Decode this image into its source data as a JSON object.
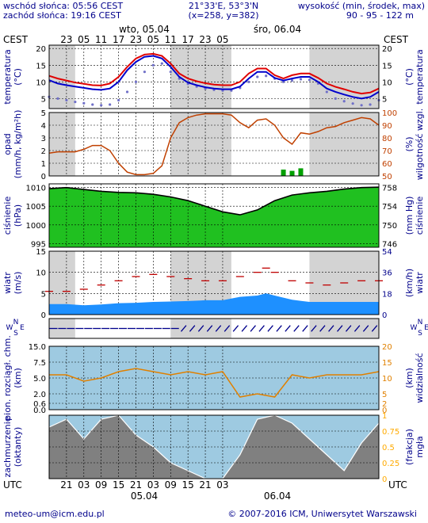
{
  "header": {
    "sunrise": "wschód słońca: 05:56 CEST",
    "sunset": "zachód słońca: 19:16 CEST",
    "coords": "21°33'E, 53°3'N",
    "grid": "(x=258, y=382)",
    "elevation_label": "wysokość (min, środek, max)",
    "elevation_values": "90 - 95 - 122 m"
  },
  "top_axis": {
    "tz_left": "CEST",
    "tz_right": "CEST",
    "day1": "wto, 05.04",
    "day2": "śro, 06.04",
    "ticks": [
      "23",
      "05",
      "11",
      "17",
      "23",
      "05",
      "11",
      "17",
      "23",
      "05"
    ]
  },
  "bottom_axis": {
    "tz_left": "UTC",
    "tz_right": "UTC",
    "ticks": [
      "21",
      "03",
      "09",
      "15",
      "21",
      "03",
      "09",
      "15",
      "21",
      "03"
    ],
    "date1": "05.04",
    "date2": "06.04"
  },
  "panels": {
    "temperature": {
      "label_left_1": "temperatura",
      "label_left_2": "(°C)",
      "label_right_1": "(°C)",
      "label_right_2": "temperatura",
      "ticks": [
        "20",
        "15",
        "10",
        "5"
      ]
    },
    "precip": {
      "label_left_1": "opad",
      "label_left_2": "(mm/h, kg/m²h)",
      "label_right_1": "(%)",
      "label_right_2": "wilgotność wzgl.",
      "ticks_left": [
        "5",
        "4",
        "3",
        "2",
        "1",
        "0"
      ],
      "ticks_right": [
        "100",
        "90",
        "80",
        "70",
        "60",
        "50"
      ]
    },
    "pressure": {
      "label_left_1": "ciśnienie",
      "label_left_2": "(hPa)",
      "label_right_1": "(mm Hg)",
      "label_right_2": "ciśnienie",
      "ticks_left": [
        "1010",
        "1005",
        "1000",
        "995"
      ],
      "ticks_right": [
        "758",
        "754",
        "750",
        "746"
      ]
    },
    "wind": {
      "label_left_1": "wiatr",
      "label_left_2": "(m/s)",
      "label_right_1": "(km/h)",
      "label_right_2": "wiatr",
      "ticks_left": [
        "15",
        "10",
        "5",
        "0"
      ],
      "ticks_right": [
        "54",
        "36",
        "18",
        "0"
      ]
    },
    "wind_dir": {
      "compass_n": "N",
      "compass_w": "W",
      "compass_e": "E",
      "compass_s": "S"
    },
    "visibility": {
      "label_left_1": "pion. rozciągł. chm.",
      "label_left_2": "(km)",
      "label_right_1": "(km)",
      "label_right_2": "widzialność",
      "ticks_left": [
        "15.0",
        "7.5",
        "5.0",
        "2.0",
        "0.6",
        "0.0"
      ],
      "ticks_right": [
        "20",
        "15",
        "10",
        "5",
        "2",
        "0"
      ]
    },
    "clouds": {
      "label_left_1": "zachmurzenie",
      "label_left_2": "(oktanty)",
      "label_right_1": "(frakcja)",
      "label_right_2": "mgła",
      "ticks_right": [
        "1",
        "0.75",
        "0.5",
        "0.25",
        "0"
      ]
    }
  },
  "footer": {
    "email": "meteo-um@icm.edu.pl",
    "copyright": "© 2007-2016 ICM, Uniwersytet Warszawski"
  },
  "colors": {
    "panel_bg": "#ffffff",
    "night_band": "#d3d3d3",
    "temp_red": "#e00000",
    "temp_blue": "#0000cc",
    "dewpoint": "#7070c8",
    "humidity_line": "#c04000",
    "precip_bar": "#00a000",
    "pressure_fill": "#20c020",
    "wind_fill": "#1e90ff",
    "wind_gust": "#c00000",
    "wind_arrow": "#00008b",
    "vis_bg": "#9ecae1",
    "vis_line": "#e08000",
    "cloud_top": "#8b0000",
    "cloud_fog": "#ffaa00",
    "axis_blue": "#00008b"
  },
  "chart_data": [
    {
      "type": "line",
      "panel": "temperature",
      "x_hours": [
        0,
        3,
        6,
        9,
        12,
        15,
        18,
        21,
        24,
        27,
        30,
        33,
        36,
        39,
        42,
        45,
        48,
        51,
        54,
        57,
        60,
        63,
        66,
        69,
        72,
        75,
        78,
        81,
        84,
        87,
        90,
        93,
        96,
        99,
        102,
        105,
        108,
        111,
        114
      ],
      "series": [
        {
          "values": [
            11.8,
            11.0,
            10.4,
            9.8,
            9.4,
            9.0,
            8.9,
            9.5,
            11.5,
            14.5,
            17.0,
            18.2,
            18.4,
            17.8,
            15.5,
            12.5,
            11.0,
            10.2,
            9.6,
            9.2,
            9.0,
            9.0,
            10.0,
            12.5,
            14.0,
            14.0,
            12.0,
            11.0,
            12.0,
            12.5,
            12.5,
            11.2,
            9.5,
            8.5,
            7.8,
            7.0,
            6.5,
            6.8,
            8.0
          ]
        },
        {
          "values": [
            10.5,
            9.5,
            9.0,
            8.6,
            8.2,
            7.8,
            7.6,
            8.0,
            10.0,
            13.5,
            16.0,
            17.5,
            17.8,
            17.0,
            14.5,
            11.5,
            9.8,
            9.0,
            8.4,
            8.0,
            7.8,
            7.8,
            8.6,
            11.0,
            13.0,
            13.0,
            11.2,
            10.4,
            11.0,
            11.5,
            11.5,
            10.0,
            8.0,
            7.0,
            6.2,
            5.5,
            5.0,
            5.5,
            7.0
          ]
        },
        {
          "values": [
            5.5,
            5.0,
            4.5,
            4.0,
            3.6,
            3.2,
            3.0,
            3.2,
            4.5,
            7.0,
            10.0,
            13.0,
            15.0,
            15.5,
            13.0,
            11.0,
            9.4,
            8.6,
            8.0,
            7.6,
            7.4,
            7.4,
            8.2,
            10.0,
            11.5,
            11.8,
            11.0,
            10.0,
            10.4,
            10.8,
            10.6,
            9.5,
            7.0,
            5.0,
            4.2,
            3.5,
            3.0,
            3.2,
            4.5
          ]
        }
      ],
      "ylim": [
        2,
        21
      ]
    },
    {
      "type": "line",
      "panel": "humidity",
      "x_hours": [
        0,
        3,
        6,
        9,
        12,
        15,
        18,
        21,
        24,
        27,
        30,
        33,
        36,
        39,
        42,
        45,
        48,
        51,
        54,
        57,
        60,
        63,
        66,
        69,
        72,
        75,
        78,
        81,
        84,
        87,
        90,
        93,
        96,
        99,
        102,
        105,
        108,
        111,
        114
      ],
      "values": [
        68,
        69,
        69,
        69,
        71,
        74,
        74,
        70,
        60,
        53,
        51,
        51,
        52,
        58,
        80,
        92,
        96,
        98,
        99,
        99,
        99,
        98,
        92,
        88,
        94,
        95,
        90,
        80,
        75,
        84,
        83,
        85,
        88,
        89,
        92,
        94,
        96,
        95,
        90
      ],
      "ylim": [
        50,
        100
      ]
    },
    {
      "type": "bar",
      "panel": "precip",
      "x_hours": [
        81,
        84,
        87
      ],
      "values": [
        0.5,
        0.4,
        0.6
      ],
      "ylim": [
        0,
        5
      ]
    },
    {
      "type": "area",
      "panel": "pressure",
      "x_hours": [
        0,
        6,
        12,
        18,
        24,
        30,
        36,
        42,
        48,
        54,
        60,
        66,
        72,
        78,
        84,
        90,
        96,
        102,
        108,
        114
      ],
      "values": [
        1009.7,
        1010.0,
        1009.5,
        1009.0,
        1008.7,
        1008.6,
        1008.2,
        1007.5,
        1006.5,
        1005.0,
        1003.5,
        1002.7,
        1004.0,
        1006.5,
        1008.0,
        1008.6,
        1009.0,
        1009.6,
        1010.0,
        1010.1
      ],
      "ylim": [
        994,
        1011
      ]
    },
    {
      "type": "area",
      "panel": "wind",
      "x_hours": [
        0,
        6,
        12,
        18,
        24,
        30,
        36,
        42,
        48,
        54,
        60,
        66,
        72,
        75,
        78,
        84,
        90,
        96,
        102,
        108,
        114
      ],
      "speed": [
        2.5,
        2.5,
        2.2,
        2.4,
        2.7,
        2.8,
        3.0,
        3.1,
        3.2,
        3.4,
        3.4,
        4.2,
        4.5,
        5.0,
        4.5,
        3.5,
        3.0,
        3.0,
        3.0,
        3.0,
        3.0
      ],
      "gust": [
        5.5,
        5.5,
        6.0,
        7.0,
        8.0,
        9.0,
        9.5,
        9.0,
        8.5,
        8.0,
        8.0,
        9.0,
        10.0,
        11.0,
        10.0,
        8.0,
        7.5,
        7.0,
        7.5,
        8.0,
        8.0
      ],
      "ylim": [
        0,
        15
      ]
    },
    {
      "type": "line",
      "panel": "visibility",
      "x_hours": [
        0,
        6,
        12,
        18,
        24,
        30,
        36,
        42,
        48,
        54,
        60,
        66,
        72,
        78,
        84,
        90,
        96,
        102,
        108,
        114
      ],
      "values": [
        11,
        11,
        9,
        10,
        12,
        13,
        12,
        11,
        12,
        11,
        12,
        4,
        5,
        4,
        11,
        10,
        11,
        11,
        11,
        12
      ],
      "ylim": [
        0,
        20
      ]
    },
    {
      "type": "area",
      "panel": "clouds",
      "x_hours": [
        0,
        6,
        12,
        18,
        24,
        30,
        36,
        42,
        48,
        54,
        60,
        66,
        72,
        78,
        84,
        90,
        96,
        102,
        108,
        114
      ],
      "values": [
        6.5,
        7.5,
        5,
        7.5,
        8,
        5.5,
        4,
        2,
        1,
        0,
        0,
        3,
        7.5,
        8,
        7,
        5,
        3,
        1,
        4.5,
        7
      ],
      "ylim": [
        0,
        8
      ]
    }
  ]
}
